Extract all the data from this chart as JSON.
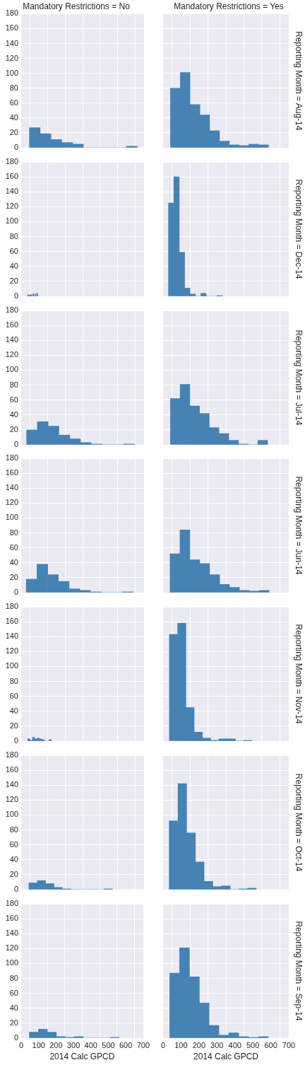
{
  "chart_data": [
    {
      "type": "histogram",
      "title": "Mandatory Restrictions = No",
      "bins": [
        47,
        108,
        170,
        231,
        293,
        354,
        415,
        477,
        538,
        600,
        661
      ],
      "values": [
        27,
        19,
        11,
        7,
        5,
        0,
        0,
        0,
        0,
        2
      ],
      "color": "#4682b4",
      "xlim": [
        0,
        700
      ],
      "xticks": [
        0,
        100,
        200,
        300,
        400,
        500,
        600,
        700
      ],
      "ylim": [
        0,
        180
      ],
      "yticks": [
        0,
        20,
        40,
        60,
        80,
        100,
        120,
        140,
        160,
        180
      ],
      "grid": true,
      "tick_labels": "y"
    },
    {
      "type": "histogram",
      "title": "Mandatory Restrictions = Yes",
      "y2label": "Reporting Month = Aug-14",
      "bins": [
        41,
        96,
        150,
        205,
        259,
        314,
        369,
        423,
        478,
        532,
        587
      ],
      "values": [
        80,
        101,
        58,
        44,
        23,
        9,
        4,
        3,
        5,
        4
      ],
      "color": "#4682b4",
      "xlim": [
        0,
        700
      ],
      "xticks": [
        0,
        100,
        200,
        300,
        400,
        500,
        600,
        700
      ],
      "ylim": [
        0,
        180
      ],
      "yticks": [
        0,
        20,
        40,
        60,
        80,
        100,
        120,
        140,
        160,
        180
      ],
      "grid": true,
      "tick_labels": false
    },
    {
      "type": "histogram",
      "bins": [
        36,
        42,
        48,
        54,
        59,
        65,
        71,
        77,
        82,
        88,
        94
      ],
      "values": [
        2,
        1,
        2,
        2,
        0,
        3,
        0,
        3,
        0,
        4
      ],
      "color": "#4682b4",
      "xlim": [
        0,
        700
      ],
      "xticks": [
        0,
        100,
        200,
        300,
        400,
        500,
        600,
        700
      ],
      "ylim": [
        0,
        180
      ],
      "yticks": [
        0,
        20,
        40,
        60,
        80,
        100,
        120,
        140,
        160,
        180
      ],
      "grid": true,
      "tick_labels": "y"
    },
    {
      "type": "histogram",
      "y2label": "Reporting Month = Dec-14",
      "bins": [
        30,
        60,
        90,
        120,
        150,
        180,
        210,
        240,
        270,
        300,
        330
      ],
      "values": [
        125,
        160,
        59,
        11,
        3,
        0,
        4,
        0,
        0,
        1
      ],
      "color": "#4682b4",
      "xlim": [
        0,
        700
      ],
      "xticks": [
        0,
        100,
        200,
        300,
        400,
        500,
        600,
        700
      ],
      "ylim": [
        0,
        180
      ],
      "yticks": [
        0,
        20,
        40,
        60,
        80,
        100,
        120,
        140,
        160,
        180
      ],
      "grid": true,
      "tick_labels": false
    },
    {
      "type": "histogram",
      "bins": [
        31,
        92,
        154,
        215,
        277,
        338,
        399,
        461,
        522,
        584,
        645
      ],
      "values": [
        20,
        31,
        25,
        13,
        8,
        3,
        1,
        0,
        0,
        1
      ],
      "color": "#4682b4",
      "xlim": [
        0,
        700
      ],
      "xticks": [
        0,
        100,
        200,
        300,
        400,
        500,
        600,
        700
      ],
      "ylim": [
        0,
        180
      ],
      "yticks": [
        0,
        20,
        40,
        60,
        80,
        100,
        120,
        140,
        160,
        180
      ],
      "grid": true,
      "tick_labels": "y"
    },
    {
      "type": "histogram",
      "y2label": "Reporting Month = Jul-14",
      "bins": [
        41,
        95,
        149,
        203,
        257,
        311,
        366,
        420,
        474,
        528,
        582
      ],
      "values": [
        62,
        81,
        52,
        42,
        23,
        15,
        6,
        1,
        0,
        6
      ],
      "color": "#4682b4",
      "xlim": [
        0,
        700
      ],
      "xticks": [
        0,
        100,
        200,
        300,
        400,
        500,
        600,
        700
      ],
      "ylim": [
        0,
        180
      ],
      "yticks": [
        0,
        20,
        40,
        60,
        80,
        100,
        120,
        140,
        160,
        180
      ],
      "grid": true,
      "tick_labels": false
    },
    {
      "type": "histogram",
      "bins": [
        29,
        90,
        151,
        212,
        273,
        334,
        394,
        455,
        516,
        577,
        638
      ],
      "values": [
        18,
        38,
        24,
        15,
        5,
        3,
        1,
        0,
        0,
        1
      ],
      "color": "#4682b4",
      "xlim": [
        0,
        700
      ],
      "xticks": [
        0,
        100,
        200,
        300,
        400,
        500,
        600,
        700
      ],
      "ylim": [
        0,
        180
      ],
      "yticks": [
        0,
        20,
        40,
        60,
        80,
        100,
        120,
        140,
        160,
        180
      ],
      "grid": true,
      "tick_labels": "y"
    },
    {
      "type": "histogram",
      "y2label": "Reporting Month = Jun-14",
      "bins": [
        39,
        94,
        149,
        204,
        259,
        315,
        370,
        425,
        480,
        535,
        590
      ],
      "values": [
        52,
        84,
        44,
        39,
        24,
        11,
        7,
        3,
        2,
        3
      ],
      "color": "#4682b4",
      "xlim": [
        0,
        700
      ],
      "xticks": [
        0,
        100,
        200,
        300,
        400,
        500,
        600,
        700
      ],
      "ylim": [
        0,
        180
      ],
      "yticks": [
        0,
        20,
        40,
        60,
        80,
        100,
        120,
        140,
        160,
        180
      ],
      "grid": true,
      "tick_labels": false
    },
    {
      "type": "histogram",
      "bins": [
        37,
        50,
        64,
        77,
        91,
        104,
        118,
        132,
        145,
        159,
        172
      ],
      "values": [
        3,
        1,
        5,
        3,
        4,
        3,
        2,
        0,
        0,
        2
      ],
      "color": "#4682b4",
      "xlim": [
        0,
        700
      ],
      "xticks": [
        0,
        100,
        200,
        300,
        400,
        500,
        600,
        700
      ],
      "ylim": [
        0,
        180
      ],
      "yticks": [
        0,
        20,
        40,
        60,
        80,
        100,
        120,
        140,
        160,
        180
      ],
      "grid": true,
      "tick_labels": "y"
    },
    {
      "type": "histogram",
      "y2label": "Reporting Month = Nov-14",
      "bins": [
        35,
        81,
        127,
        173,
        219,
        265,
        311,
        357,
        403,
        449,
        495
      ],
      "values": [
        143,
        158,
        45,
        12,
        4,
        1,
        3,
        3,
        0,
        1
      ],
      "color": "#4682b4",
      "xlim": [
        0,
        700
      ],
      "xticks": [
        0,
        100,
        200,
        300,
        400,
        500,
        600,
        700
      ],
      "ylim": [
        0,
        180
      ],
      "yticks": [
        0,
        20,
        40,
        60,
        80,
        100,
        120,
        140,
        160,
        180
      ],
      "grid": true,
      "tick_labels": false
    },
    {
      "type": "histogram",
      "bins": [
        44,
        92,
        139,
        187,
        234,
        282,
        330,
        377,
        425,
        472,
        520
      ],
      "values": [
        9,
        12,
        8,
        3,
        1,
        0,
        0,
        0,
        0,
        1
      ],
      "color": "#4682b4",
      "xlim": [
        0,
        700
      ],
      "xticks": [
        0,
        100,
        200,
        300,
        400,
        500,
        600,
        700
      ],
      "ylim": [
        0,
        180
      ],
      "yticks": [
        0,
        20,
        40,
        60,
        80,
        100,
        120,
        140,
        160,
        180
      ],
      "grid": true,
      "tick_labels": "y"
    },
    {
      "type": "histogram",
      "y2label": "Reporting Month = Oct-14",
      "bins": [
        34,
        83,
        131,
        180,
        228,
        277,
        325,
        374,
        422,
        471,
        519
      ],
      "values": [
        92,
        142,
        76,
        37,
        11,
        4,
        5,
        0,
        1,
        2
      ],
      "color": "#4682b4",
      "xlim": [
        0,
        700
      ],
      "xticks": [
        0,
        100,
        200,
        300,
        400,
        500,
        600,
        700
      ],
      "ylim": [
        0,
        180
      ],
      "yticks": [
        0,
        20,
        40,
        60,
        80,
        100,
        120,
        140,
        160,
        180
      ],
      "grid": true,
      "tick_labels": false
    },
    {
      "type": "histogram",
      "xlabel": "2014 Calc GPCD",
      "bins": [
        47,
        99,
        150,
        202,
        253,
        305,
        356,
        408,
        459,
        511,
        562
      ],
      "values": [
        8,
        12,
        8,
        2,
        1,
        2,
        0,
        0,
        0,
        1
      ],
      "color": "#4682b4",
      "xlim": [
        0,
        700
      ],
      "xticks": [
        0,
        100,
        200,
        300,
        400,
        500,
        600,
        700
      ],
      "ylim": [
        0,
        180
      ],
      "yticks": [
        0,
        20,
        40,
        60,
        80,
        100,
        120,
        140,
        160,
        180
      ],
      "grid": true
    },
    {
      "type": "histogram",
      "xlabel": "2014 Calc GPCD",
      "y2label": "Reporting Month = Sep-14",
      "bins": [
        37,
        92,
        147,
        202,
        256,
        311,
        366,
        421,
        476,
        531,
        586
      ],
      "values": [
        87,
        121,
        82,
        47,
        17,
        4,
        7,
        2,
        1,
        2
      ],
      "color": "#4682b4",
      "xlim": [
        0,
        700
      ],
      "xticks": [
        0,
        100,
        200,
        300,
        400,
        500,
        600,
        700
      ],
      "ylim": [
        0,
        180
      ],
      "yticks": [
        0,
        20,
        40,
        60,
        80,
        100,
        120,
        140,
        160,
        180
      ],
      "grid": true,
      "tick_labels": "x"
    }
  ]
}
